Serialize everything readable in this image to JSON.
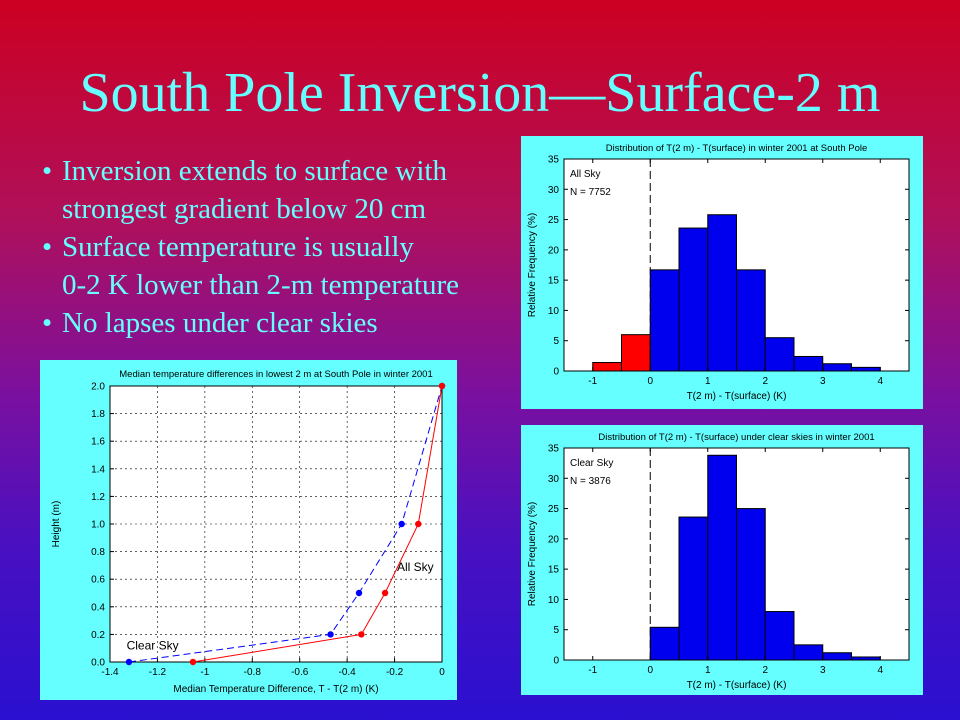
{
  "slide": {
    "title": "South Pole Inversion—Surface-2 m",
    "bullets": [
      {
        "line1": "Inversion extends to surface with",
        "line2": "strongest gradient below 20 cm"
      },
      {
        "line1": "Surface temperature is usually",
        "line2": "0-2 K lower than 2-m temperature"
      },
      {
        "line1": "No lapses under clear skies",
        "line2": ""
      }
    ]
  },
  "colors": {
    "background_top": "#cc0022",
    "background_bottom": "#2a10d0",
    "title_text": "#66ffff",
    "panel_bg": "#66ffff",
    "bar_blue": "#0000ee",
    "bar_red": "#ff0000",
    "clear_sky_line": "#0000ff",
    "all_sky_line": "#ff0000"
  },
  "chart_data": [
    {
      "type": "line",
      "title": "Median temperature differences in lowest 2 m at South Pole in winter 2001",
      "xlabel": "Median Temperature Difference, T - T(2 m) (K)",
      "ylabel": "Height (m)",
      "xlim": [
        -1.4,
        0
      ],
      "ylim": [
        0,
        2.0
      ],
      "xticks": [
        -1.4,
        -1.2,
        -1,
        -0.8,
        -0.6,
        -0.4,
        -0.2,
        0
      ],
      "xtick_labels": [
        "-1.4",
        "-1.2",
        "-1",
        "-0.8",
        "-0.6",
        "-0.4",
        "-0.2",
        "0"
      ],
      "yticks": [
        0,
        0.2,
        0.4,
        0.6,
        0.8,
        1.0,
        1.2,
        1.4,
        1.6,
        1.8,
        2.0
      ],
      "ytick_labels": [
        "0.0",
        "0.2",
        "0.4",
        "0.6",
        "0.8",
        "1.0",
        "1.2",
        "1.4",
        "1.6",
        "1.8",
        "2.0"
      ],
      "grid": true,
      "series": [
        {
          "name": "Clear Sky",
          "style": "dashed",
          "color": "#0000ff",
          "x": [
            -1.32,
            -0.47,
            -0.35,
            -0.17,
            0
          ],
          "y": [
            0.0,
            0.2,
            0.5,
            1.0,
            2.0
          ]
        },
        {
          "name": "All Sky",
          "style": "solid",
          "color": "#ff0000",
          "x": [
            -1.05,
            -0.34,
            -0.24,
            -0.1,
            0
          ],
          "y": [
            0.0,
            0.2,
            0.5,
            1.0,
            2.0
          ]
        }
      ]
    },
    {
      "type": "bar",
      "title": "Distribution of T(2 m) - T(surface) in winter 2001 at South Pole",
      "xlabel": "T(2 m) - T(surface) (K)",
      "ylabel": "Relative Frequency (%)",
      "annotation_label": "All Sky",
      "annotation_count": "N = 7752",
      "xlim": [
        -1.5,
        4.5
      ],
      "ylim": [
        0,
        35
      ],
      "xticks": [
        -1,
        0,
        1,
        2,
        3,
        4
      ],
      "xtick_labels": [
        "-1",
        "0",
        "1",
        "2",
        "3",
        "4"
      ],
      "yticks": [
        0,
        5,
        10,
        15,
        20,
        25,
        30,
        35
      ],
      "ytick_labels": [
        "0",
        "5",
        "10",
        "15",
        "20",
        "25",
        "30",
        "35"
      ],
      "dashed_vline_x": 0,
      "bin_width": 0.5,
      "bin_starts": [
        -1,
        -0.5,
        0,
        0.5,
        1,
        1.5,
        2,
        2.5,
        3,
        3.5
      ],
      "values": [
        1.4,
        6.0,
        16.7,
        23.6,
        25.8,
        16.7,
        5.5,
        2.4,
        1.2,
        0.6
      ],
      "bar_colors": [
        "#ff0000",
        "#ff0000",
        "#0000ee",
        "#0000ee",
        "#0000ee",
        "#0000ee",
        "#0000ee",
        "#0000ee",
        "#0000ee",
        "#0000ee"
      ]
    },
    {
      "type": "bar",
      "title": "Distribution of T(2 m) - T(surface) under clear skies in winter 2001",
      "xlabel": "T(2 m) - T(surface) (K)",
      "ylabel": "Relative Frequency (%)",
      "annotation_label": "Clear Sky",
      "annotation_count": "N = 3876",
      "xlim": [
        -1.5,
        4.5
      ],
      "ylim": [
        0,
        35
      ],
      "xticks": [
        -1,
        0,
        1,
        2,
        3,
        4
      ],
      "xtick_labels": [
        "-1",
        "0",
        "1",
        "2",
        "3",
        "4"
      ],
      "yticks": [
        0,
        5,
        10,
        15,
        20,
        25,
        30,
        35
      ],
      "ytick_labels": [
        "0",
        "5",
        "10",
        "15",
        "20",
        "25",
        "30",
        "35"
      ],
      "dashed_vline_x": 0,
      "bin_width": 0.5,
      "bin_starts": [
        0,
        0.5,
        1,
        1.5,
        2,
        2.5,
        3,
        3.5
      ],
      "values": [
        5.4,
        23.6,
        33.8,
        25.0,
        8.0,
        2.5,
        1.2,
        0.5
      ],
      "bar_colors": [
        "#0000ee",
        "#0000ee",
        "#0000ee",
        "#0000ee",
        "#0000ee",
        "#0000ee",
        "#0000ee",
        "#0000ee"
      ]
    }
  ]
}
